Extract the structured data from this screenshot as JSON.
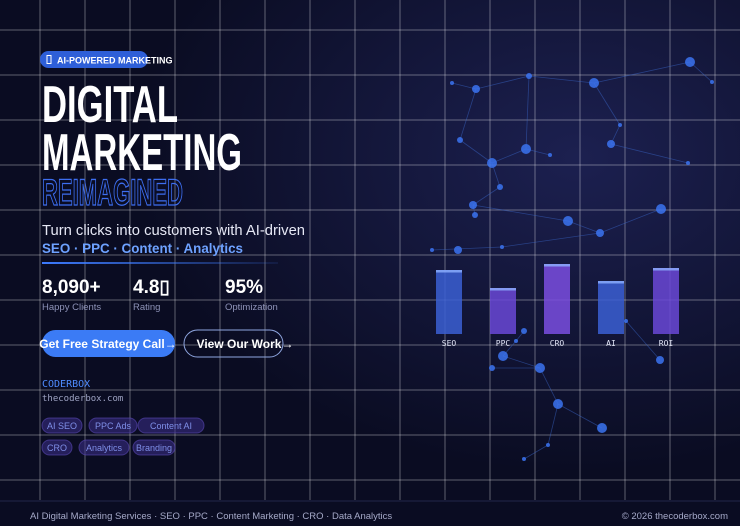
{
  "badge": "AI-POWERED MARKETING",
  "headline": {
    "line1": "DIGITAL",
    "line2": "MARKETING",
    "line3": "REIMAGINED"
  },
  "subtitle": {
    "line1": "Turn clicks into customers with AI-driven",
    "line2": "SEO · PPC · Content · Analytics"
  },
  "stats": [
    {
      "value": "8,090+",
      "label": "Happy Clients"
    },
    {
      "value": "4.8▯",
      "label": "Rating"
    },
    {
      "value": "95%",
      "label": "Optimization"
    }
  ],
  "buttons": {
    "primary": "Get Free Strategy Call→",
    "secondary": "View Our Work→"
  },
  "brand": {
    "name": "CODERBOX",
    "url": "thecoderbox.com"
  },
  "tags": [
    "AI SEO",
    "PPC Ads",
    "Content AI",
    "CRO",
    "Analytics",
    "Branding"
  ],
  "footer": {
    "services": "AI Digital Marketing Services · SEO · PPC · Content Marketing · CRO · Data Analytics",
    "copyright": "© 2026 thecoderbox.com"
  },
  "chart_data": {
    "type": "bar",
    "categories": [
      "SEO",
      "PPC",
      "CRO",
      "AI",
      "ROI"
    ],
    "values": [
      64,
      46,
      70,
      53,
      66
    ],
    "colors": [
      "#3b5fd4",
      "#6a48d6",
      "#7a4ee0",
      "#3b5fd4",
      "#6a48d6"
    ],
    "ylim": [
      0,
      80
    ]
  }
}
